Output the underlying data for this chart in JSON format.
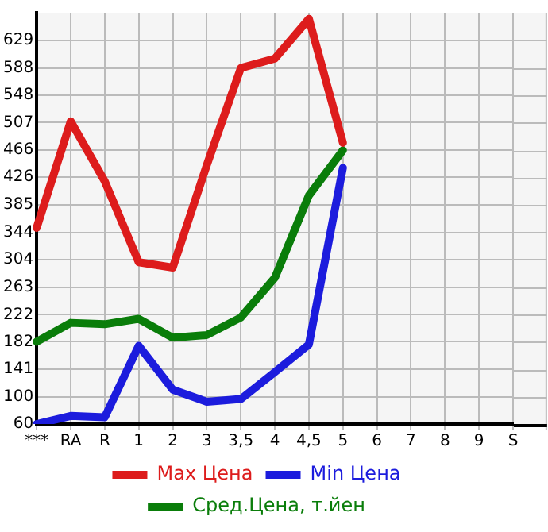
{
  "chart_data": {
    "type": "line",
    "categories": [
      "***",
      "RA",
      "R",
      "1",
      "2",
      "3",
      "3,5",
      "4",
      "4,5",
      "5",
      "6",
      "7",
      "8",
      "9",
      "S"
    ],
    "series": [
      {
        "name": "Max Цена",
        "color": "#dd1c1c",
        "values": [
          351,
          509,
          420,
          300,
          292,
          444,
          588,
          602,
          661,
          477,
          null,
          null,
          null,
          null,
          null
        ]
      },
      {
        "name": "Min Цена",
        "color": "#1c1cdd",
        "values": [
          60,
          72,
          70,
          176,
          111,
          93,
          97,
          137,
          178,
          440,
          null,
          null,
          null,
          null,
          null
        ]
      },
      {
        "name": "Сред.Цена, т.йен",
        "color": "#0a7d0a",
        "values": [
          182,
          210,
          208,
          216,
          188,
          192,
          218,
          277,
          399,
          466,
          null,
          null,
          null,
          null,
          null
        ]
      }
    ],
    "ylim": [
      60,
      670
    ],
    "yticks": [
      60,
      100,
      141,
      182,
      222,
      263,
      304,
      344,
      385,
      426,
      466,
      507,
      548,
      588,
      629
    ],
    "grid": true,
    "legend": "bottom",
    "marker": "none",
    "line_style": "solid"
  }
}
